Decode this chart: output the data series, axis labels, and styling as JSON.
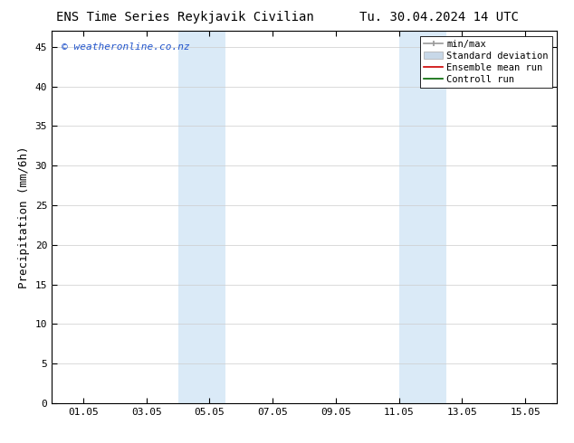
{
  "title_left": "ENS Time Series Reykjavik Civilian",
  "title_right": "Tu. 30.04.2024 14 UTC",
  "ylabel": "Precipitation (mm/6h)",
  "ylim": [
    0,
    47
  ],
  "yticks": [
    0,
    5,
    10,
    15,
    20,
    25,
    30,
    35,
    40,
    45
  ],
  "xtick_labels": [
    "01.05",
    "03.05",
    "05.05",
    "07.05",
    "09.05",
    "11.05",
    "13.05",
    "15.05"
  ],
  "xtick_positions": [
    1,
    3,
    5,
    7,
    9,
    11,
    13,
    15
  ],
  "xlim": [
    0,
    16
  ],
  "shaded_regions": [
    {
      "xstart": 4.0,
      "xend": 5.5,
      "color": "#daeaf7"
    },
    {
      "xstart": 11.0,
      "xend": 12.5,
      "color": "#daeaf7"
    }
  ],
  "legend_entries": [
    {
      "label": "min/max",
      "color": "#aaaaaa",
      "lw": 1.2,
      "type": "line_cap"
    },
    {
      "label": "Standard deviation",
      "color": "#c8d8e8",
      "lw": 5,
      "type": "patch"
    },
    {
      "label": "Ensemble mean run",
      "color": "#cc0000",
      "lw": 1.2,
      "type": "line"
    },
    {
      "label": "Controll run",
      "color": "#006600",
      "lw": 1.2,
      "type": "line"
    }
  ],
  "watermark": "© weatheronline.co.nz",
  "watermark_color": "#2255cc",
  "background_color": "#ffffff",
  "plot_bg_color": "#ffffff",
  "border_color": "#000000",
  "grid_color": "#cccccc",
  "title_fontsize": 10,
  "ylabel_fontsize": 9,
  "tick_fontsize": 8,
  "legend_fontsize": 7.5,
  "watermark_fontsize": 8
}
